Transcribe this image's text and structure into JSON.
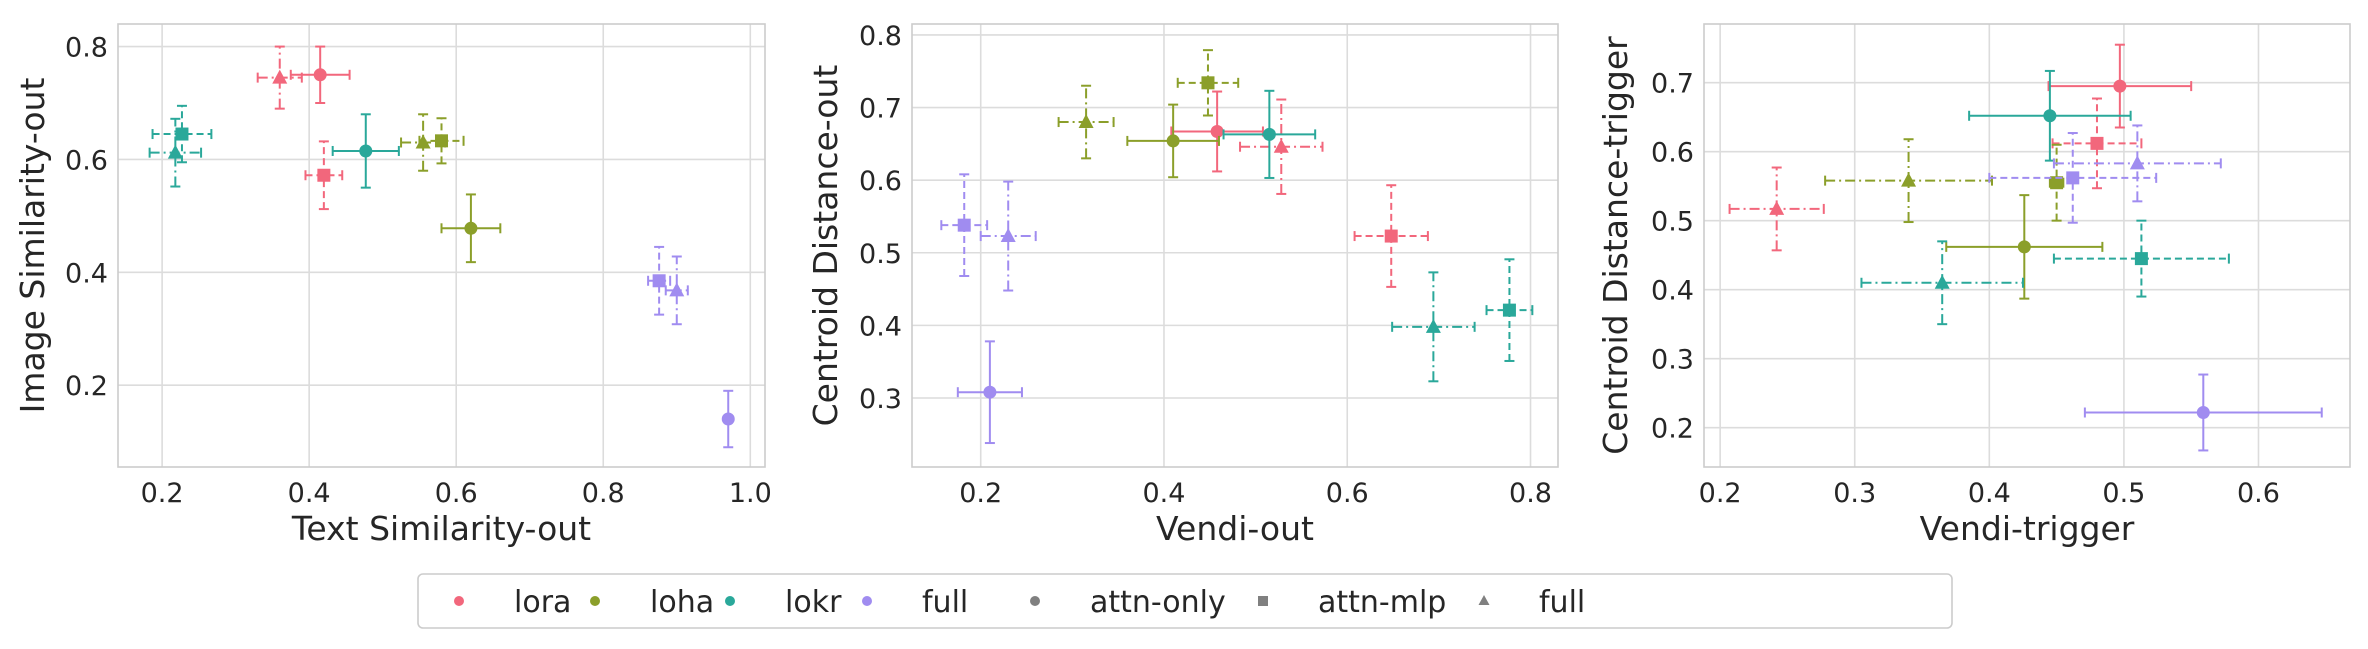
{
  "colors": {
    "lora": "#f2677c",
    "loha": "#8b9f2a",
    "lokr": "#2aa89a",
    "full": "#a08cf0",
    "gray": "#808080"
  },
  "legend": [
    {
      "label": "lora",
      "marker": "circle",
      "color": "lora"
    },
    {
      "label": "loha",
      "marker": "circle",
      "color": "loha"
    },
    {
      "label": "lokr",
      "marker": "circle",
      "color": "lokr"
    },
    {
      "label": "full",
      "marker": "circle",
      "color": "full"
    },
    {
      "label": "attn-only",
      "marker": "circle",
      "color": "gray"
    },
    {
      "label": "attn-mlp",
      "marker": "square",
      "color": "gray"
    },
    {
      "label": "full",
      "marker": "triangle",
      "color": "gray"
    }
  ],
  "chart_data": [
    {
      "type": "scatter",
      "xlabel": "Text Similarity-out",
      "ylabel": "Image Similarity-out",
      "xlim": [
        0.14,
        1.02
      ],
      "ylim": [
        0.055,
        0.84
      ],
      "xticks": [
        "0.2",
        "0.4",
        "0.6",
        "0.8",
        "1.0"
      ],
      "xtick_values": [
        0.2,
        0.4,
        0.6,
        0.8,
        1.0
      ],
      "yticks": [
        "0.2",
        "0.4",
        "0.6",
        "0.8"
      ],
      "ytick_values": [
        0.2,
        0.4,
        0.6,
        0.8
      ],
      "grid": true,
      "points": [
        {
          "method": "lora",
          "scope": "attn-only",
          "x": 0.415,
          "y": 0.75,
          "xerr": 0.04,
          "yerr": 0.05
        },
        {
          "method": "lora",
          "scope": "attn-mlp",
          "x": 0.42,
          "y": 0.572,
          "xerr": 0.025,
          "yerr": 0.06
        },
        {
          "method": "lora",
          "scope": "full",
          "x": 0.36,
          "y": 0.745,
          "xerr": 0.03,
          "yerr": 0.055
        },
        {
          "method": "loha",
          "scope": "attn-only",
          "x": 0.62,
          "y": 0.478,
          "xerr": 0.04,
          "yerr": 0.06
        },
        {
          "method": "loha",
          "scope": "attn-mlp",
          "x": 0.58,
          "y": 0.633,
          "xerr": 0.03,
          "yerr": 0.04
        },
        {
          "method": "loha",
          "scope": "full",
          "x": 0.555,
          "y": 0.63,
          "xerr": 0.03,
          "yerr": 0.05
        },
        {
          "method": "lokr",
          "scope": "attn-only",
          "x": 0.477,
          "y": 0.615,
          "xerr": 0.045,
          "yerr": 0.065
        },
        {
          "method": "lokr",
          "scope": "attn-mlp",
          "x": 0.227,
          "y": 0.645,
          "xerr": 0.04,
          "yerr": 0.05
        },
        {
          "method": "lokr",
          "scope": "full",
          "x": 0.218,
          "y": 0.612,
          "xerr": 0.035,
          "yerr": 0.06
        },
        {
          "method": "full",
          "scope": "attn-only",
          "x": 0.97,
          "y": 0.14,
          "xerr": 0.0,
          "yerr": 0.05
        },
        {
          "method": "full",
          "scope": "attn-mlp",
          "x": 0.876,
          "y": 0.385,
          "xerr": 0.015,
          "yerr": 0.06
        },
        {
          "method": "full",
          "scope": "full",
          "x": 0.9,
          "y": 0.368,
          "xerr": 0.015,
          "yerr": 0.06
        }
      ]
    },
    {
      "type": "scatter",
      "xlabel": "Vendi-out",
      "ylabel": "Centroid Distance-out",
      "xlim": [
        0.125,
        0.83
      ],
      "ylim": [
        0.205,
        0.815
      ],
      "xticks": [
        "0.2",
        "0.4",
        "0.6",
        "0.8"
      ],
      "xtick_values": [
        0.2,
        0.4,
        0.6,
        0.8
      ],
      "yticks": [
        "0.3",
        "0.4",
        "0.5",
        "0.6",
        "0.7",
        "0.8"
      ],
      "ytick_values": [
        0.3,
        0.4,
        0.5,
        0.6,
        0.7,
        0.8
      ],
      "grid": true,
      "points": [
        {
          "method": "lora",
          "scope": "attn-only",
          "x": 0.458,
          "y": 0.667,
          "xerr": 0.05,
          "yerr": 0.055
        },
        {
          "method": "lora",
          "scope": "attn-mlp",
          "x": 0.648,
          "y": 0.523,
          "xerr": 0.04,
          "yerr": 0.07
        },
        {
          "method": "lora",
          "scope": "full",
          "x": 0.528,
          "y": 0.646,
          "xerr": 0.045,
          "yerr": 0.065
        },
        {
          "method": "loha",
          "scope": "attn-only",
          "x": 0.41,
          "y": 0.654,
          "xerr": 0.05,
          "yerr": 0.05
        },
        {
          "method": "loha",
          "scope": "attn-mlp",
          "x": 0.448,
          "y": 0.734,
          "xerr": 0.033,
          "yerr": 0.045
        },
        {
          "method": "loha",
          "scope": "full",
          "x": 0.315,
          "y": 0.68,
          "xerr": 0.03,
          "yerr": 0.05
        },
        {
          "method": "lokr",
          "scope": "attn-only",
          "x": 0.515,
          "y": 0.663,
          "xerr": 0.05,
          "yerr": 0.06
        },
        {
          "method": "lokr",
          "scope": "attn-mlp",
          "x": 0.777,
          "y": 0.421,
          "xerr": 0.025,
          "yerr": 0.07
        },
        {
          "method": "lokr",
          "scope": "full",
          "x": 0.694,
          "y": 0.398,
          "xerr": 0.045,
          "yerr": 0.075
        },
        {
          "method": "full",
          "scope": "attn-only",
          "x": 0.21,
          "y": 0.308,
          "xerr": 0.035,
          "yerr": 0.07
        },
        {
          "method": "full",
          "scope": "attn-mlp",
          "x": 0.182,
          "y": 0.538,
          "xerr": 0.025,
          "yerr": 0.07
        },
        {
          "method": "full",
          "scope": "full",
          "x": 0.23,
          "y": 0.523,
          "xerr": 0.03,
          "yerr": 0.075
        }
      ]
    },
    {
      "type": "scatter",
      "xlabel": "Vendi-trigger",
      "ylabel": "Centroid Distance-trigger",
      "xlim": [
        0.188,
        0.668
      ],
      "ylim": [
        0.143,
        0.785
      ],
      "xticks": [
        "0.2",
        "0.3",
        "0.4",
        "0.5",
        "0.6"
      ],
      "xtick_values": [
        0.2,
        0.3,
        0.4,
        0.5,
        0.6
      ],
      "yticks": [
        "0.2",
        "0.3",
        "0.4",
        "0.5",
        "0.6",
        "0.7"
      ],
      "ytick_values": [
        0.2,
        0.3,
        0.4,
        0.5,
        0.6,
        0.7
      ],
      "grid": true,
      "points": [
        {
          "method": "lora",
          "scope": "attn-only",
          "x": 0.497,
          "y": 0.695,
          "xerr": 0.053,
          "yerr": 0.06
        },
        {
          "method": "lora",
          "scope": "attn-mlp",
          "x": 0.48,
          "y": 0.612,
          "xerr": 0.033,
          "yerr": 0.065
        },
        {
          "method": "lora",
          "scope": "full",
          "x": 0.242,
          "y": 0.517,
          "xerr": 0.035,
          "yerr": 0.06
        },
        {
          "method": "loha",
          "scope": "attn-only",
          "x": 0.426,
          "y": 0.462,
          "xerr": 0.058,
          "yerr": 0.075
        },
        {
          "method": "loha",
          "scope": "attn-mlp",
          "x": 0.45,
          "y": 0.555,
          "xerr": 0.005,
          "yerr": 0.055
        },
        {
          "method": "loha",
          "scope": "full",
          "x": 0.34,
          "y": 0.558,
          "xerr": 0.062,
          "yerr": 0.06
        },
        {
          "method": "lokr",
          "scope": "attn-only",
          "x": 0.445,
          "y": 0.652,
          "xerr": 0.06,
          "yerr": 0.065
        },
        {
          "method": "lokr",
          "scope": "attn-mlp",
          "x": 0.513,
          "y": 0.445,
          "xerr": 0.065,
          "yerr": 0.055
        },
        {
          "method": "lokr",
          "scope": "full",
          "x": 0.365,
          "y": 0.41,
          "xerr": 0.06,
          "yerr": 0.06
        },
        {
          "method": "full",
          "scope": "attn-only",
          "x": 0.559,
          "y": 0.222,
          "xerr": 0.088,
          "yerr": 0.055
        },
        {
          "method": "full",
          "scope": "attn-mlp",
          "x": 0.462,
          "y": 0.562,
          "xerr": 0.062,
          "yerr": 0.065
        },
        {
          "method": "full",
          "scope": "full",
          "x": 0.51,
          "y": 0.583,
          "xerr": 0.062,
          "yerr": 0.055
        }
      ]
    }
  ]
}
